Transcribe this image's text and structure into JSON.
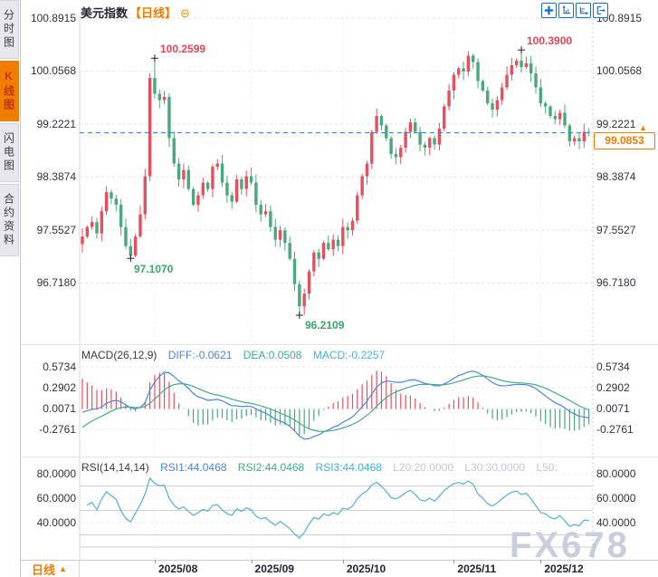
{
  "header": {
    "title": "美元指数",
    "period_tag": "【日线】",
    "collapse_icon": "⊖"
  },
  "toolbar": {
    "icons": [
      {
        "name": "pan"
      },
      {
        "name": "y-axis-zoom"
      },
      {
        "name": "x-axis-zoom"
      },
      {
        "name": "exit-chart"
      }
    ]
  },
  "sidebar": {
    "tabs": [
      {
        "label": "分时图",
        "active": false
      },
      {
        "label": "K线图",
        "active": true
      },
      {
        "label": "闪电图",
        "active": false
      },
      {
        "label": "合约资料",
        "active": false
      }
    ]
  },
  "main_chart": {
    "y_axis_labels": [
      "100.8915",
      "100.0568",
      "99.2221",
      "98.3874",
      "97.5527",
      "96.7180"
    ],
    "annotations": {
      "high1": "100.2599",
      "low1": "97.1070",
      "low2": "96.2109",
      "high2": "100.3900"
    },
    "last_price": "99.0853",
    "last_price_direction": "▲"
  },
  "macd_panel": {
    "header": {
      "name": "MACD(26,12,9)",
      "diff": "DIFF:-0.0621",
      "dea": "DEA:0.0508",
      "macd": "MACD:-0.2257"
    },
    "y_axis_labels": [
      "0.5734",
      "0.2902",
      "0.0071",
      "-0.2761"
    ]
  },
  "rsi_panel": {
    "header": {
      "name": "RSI(14,14,14)",
      "rsi1": "RSI1:44.0468",
      "rsi2": "RSI2:44.0468",
      "rsi3": "RSI3:44.0468",
      "l20": "L20:20.0000",
      "l30": "L30:30.0000",
      "l50": "L50:"
    },
    "y_axis_labels": [
      "80.0000",
      "60.0000",
      "40.0000"
    ]
  },
  "x_axis": {
    "labels": [
      "2025/08",
      "2025/09",
      "2025/10",
      "2025/11",
      "2025/12"
    ]
  },
  "bottom_bar": {
    "period_label": "日线",
    "direction": "▲"
  },
  "watermark": "FX678",
  "colors": {
    "up": "#e45060",
    "down": "#4aa87c",
    "accent_orange": "#f07d00",
    "dashed_line": "#1c79e8",
    "diff": "#4a86d8",
    "dea": "#44ab8a",
    "macd": "#45b2e0",
    "rsi": "#55aed6",
    "muted": "#c3c7cf"
  },
  "chart_data": {
    "type": "candlestick",
    "symbol": "美元指数",
    "period": "日线",
    "closes": [
      97.45,
      97.6,
      97.68,
      97.5,
      97.85,
      98.15,
      98.05,
      97.95,
      97.6,
      97.3,
      97.15,
      97.45,
      97.8,
      98.4,
      99.95,
      99.7,
      99.6,
      99.65,
      99.0,
      98.6,
      98.35,
      98.5,
      98.2,
      97.95,
      98.1,
      98.3,
      98.2,
      98.55,
      98.6,
      98.3,
      98.1,
      98.0,
      98.35,
      98.2,
      98.4,
      98.3,
      97.95,
      97.8,
      97.85,
      97.6,
      97.4,
      97.55,
      97.35,
      97.1,
      96.7,
      96.35,
      96.55,
      96.9,
      97.2,
      97.1,
      97.35,
      97.25,
      97.4,
      97.3,
      97.6,
      97.55,
      97.7,
      98.1,
      98.4,
      98.6,
      99.1,
      99.35,
      99.2,
      99.0,
      98.75,
      98.7,
      98.85,
      99.1,
      99.25,
      99.1,
      98.9,
      98.85,
      99.0,
      98.9,
      99.15,
      99.5,
      99.75,
      100.0,
      100.1,
      100.05,
      100.3,
      100.2,
      99.9,
      99.75,
      99.55,
      99.45,
      99.6,
      99.8,
      100.0,
      100.15,
      100.22,
      100.12,
      100.18,
      100.02,
      99.8,
      99.55,
      99.5,
      99.35,
      99.3,
      99.4,
      99.2,
      98.95,
      99.0,
      98.95,
      99.1,
      99.0853
    ],
    "special_points": [
      {
        "index": 10,
        "price": 97.107,
        "kind": "low"
      },
      {
        "index": 15,
        "price": 100.2599,
        "kind": "high"
      },
      {
        "index": 45,
        "price": 96.2109,
        "kind": "low"
      },
      {
        "index": 91,
        "price": 100.39,
        "kind": "high"
      }
    ],
    "last_price": 99.0853,
    "y_axis_values": [
      100.8915,
      100.0568,
      99.2221,
      98.3874,
      97.5527,
      96.718
    ],
    "x_axis": {
      "labels": [
        "2025/08",
        "2025/09",
        "2025/10",
        "2025/11",
        "2025/12"
      ],
      "candle_indices": [
        15,
        35,
        54,
        77,
        95
      ]
    },
    "indicators": {
      "macd": {
        "params": [
          26,
          12,
          9
        ],
        "diff": -0.0621,
        "dea": 0.0508,
        "macd": -0.2257,
        "axis_values": [
          0.5734,
          0.2902,
          0.0071,
          -0.2761
        ]
      },
      "rsi": {
        "params": [
          14,
          14,
          14
        ],
        "rsi1": 44.0468,
        "rsi2": 44.0468,
        "rsi3": 44.0468,
        "reference_levels": [
          20,
          30,
          50
        ],
        "axis_values": [
          80,
          60,
          40
        ]
      }
    }
  }
}
